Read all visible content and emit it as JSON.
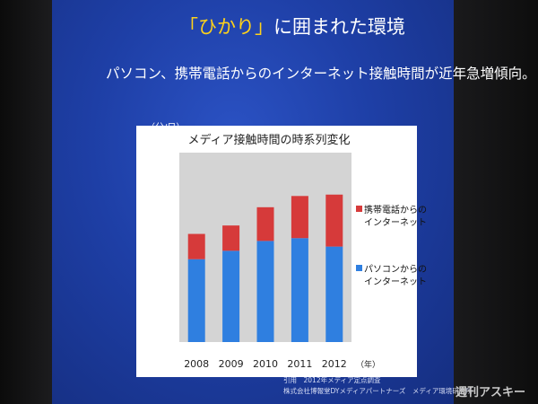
{
  "slide": {
    "title_accent": "「ひかり」",
    "title_rest": "に囲まれた環境",
    "subtitle": "パソコン、携帯電話からのインターネット接触時間が近年急増傾向。",
    "unit_label": "（分/日）",
    "citation_line1": "引用　2012年メディア定点調査",
    "citation_line2": "株式会社博報堂DYメディアパートナーズ　メディア環境研究所",
    "watermark": "週刊アスキー"
  },
  "chart_data": {
    "type": "bar",
    "stacked": true,
    "title": "メディア接触時間の時系列変化",
    "categories": [
      "2008",
      "2009",
      "2010",
      "2011",
      "2012"
    ],
    "x_unit": "（年）",
    "ylim": [
      0,
      140
    ],
    "yticks": [
      0,
      20,
      40,
      60,
      80,
      100,
      120,
      140
    ],
    "grid": false,
    "legend_position": "right",
    "series": [
      {
        "name": "パソコンからのインターネット",
        "name_line1": "パソコンからの",
        "name_line2": "インターネット",
        "color": "#2f7fe0",
        "values": [
          59,
          65,
          72,
          74,
          68
        ]
      },
      {
        "name": "携帯電話からのインターネット",
        "name_line1": "携帯電話からの",
        "name_line2": "インターネット",
        "color": "#d63a3a",
        "values": [
          18,
          18,
          24,
          30,
          37
        ]
      }
    ]
  }
}
